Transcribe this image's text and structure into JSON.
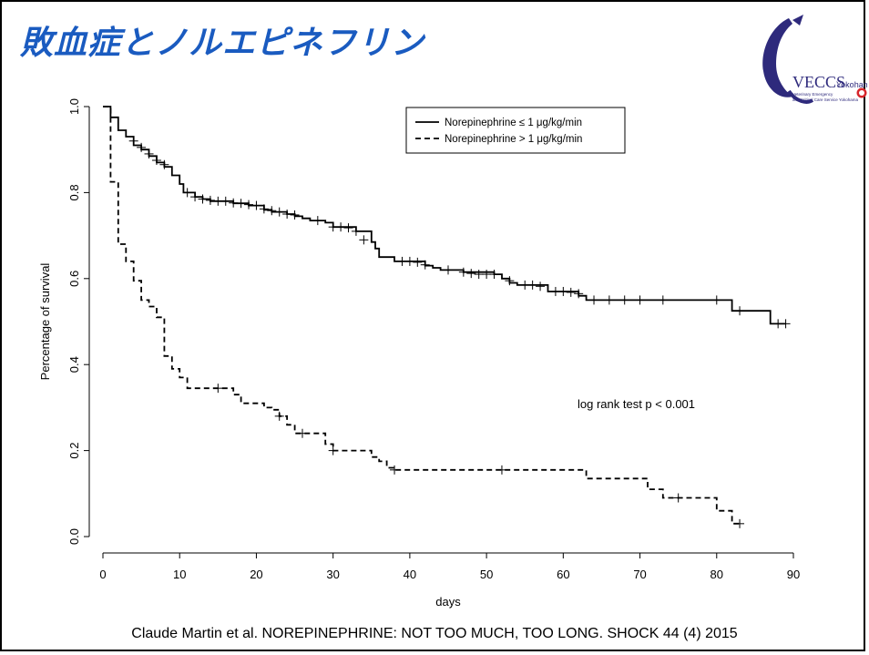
{
  "slide": {
    "title": "敗血症とノルエピネフリン",
    "citation": "Claude Martin et al. NOREPINEPHRINE: NOT TOO MUCH, TOO LONG. SHOCK 44 (4) 2015",
    "title_color": "#1a5bc0"
  },
  "logo": {
    "brand": "VECCS",
    "city": "Yokohama",
    "line1": "Veterinary Emergency",
    "line2": "and Critical Care Service Yokohama",
    "colors": {
      "arc": "#2e2a7c",
      "dot": "#d7262c"
    }
  },
  "chart_data": {
    "type": "line",
    "xlabel": "days",
    "ylabel": "Percentage of survival",
    "xlim": [
      0,
      90
    ],
    "ylim": [
      0.0,
      1.0
    ],
    "xticks": [
      "0",
      "10",
      "20",
      "30",
      "40",
      "50",
      "60",
      "70",
      "80",
      "90"
    ],
    "yticks": [
      "0.0",
      "0.2",
      "0.4",
      "0.6",
      "0.8",
      "1.0"
    ],
    "legend_position": "top-right",
    "annotation": "log rank test p < 0.001",
    "grid": false,
    "series": [
      {
        "name": "Norepinephrine ≤ 1 μg/kg/min",
        "style": "solid",
        "steps": [
          [
            0,
            1.0
          ],
          [
            1,
            0.975
          ],
          [
            2,
            0.945
          ],
          [
            3,
            0.93
          ],
          [
            4,
            0.91
          ],
          [
            5,
            0.9
          ],
          [
            6,
            0.885
          ],
          [
            7,
            0.87
          ],
          [
            8,
            0.86
          ],
          [
            9,
            0.84
          ],
          [
            10,
            0.82
          ],
          [
            10.5,
            0.8
          ],
          [
            12,
            0.79
          ],
          [
            13,
            0.785
          ],
          [
            14,
            0.78
          ],
          [
            17,
            0.775
          ],
          [
            19,
            0.77
          ],
          [
            21,
            0.76
          ],
          [
            22,
            0.755
          ],
          [
            24,
            0.75
          ],
          [
            25,
            0.745
          ],
          [
            26,
            0.74
          ],
          [
            27,
            0.735
          ],
          [
            29,
            0.73
          ],
          [
            30,
            0.72
          ],
          [
            33,
            0.71
          ],
          [
            35,
            0.685
          ],
          [
            35.5,
            0.67
          ],
          [
            36,
            0.65
          ],
          [
            38,
            0.64
          ],
          [
            42,
            0.63
          ],
          [
            43,
            0.625
          ],
          [
            44,
            0.62
          ],
          [
            47,
            0.615
          ],
          [
            51,
            0.61
          ],
          [
            52,
            0.6
          ],
          [
            53,
            0.59
          ],
          [
            54,
            0.585
          ],
          [
            58,
            0.57
          ],
          [
            62,
            0.56
          ],
          [
            63,
            0.55
          ],
          [
            82,
            0.525
          ],
          [
            87,
            0.495
          ],
          [
            89,
            0.495
          ]
        ],
        "censored": [
          [
            4,
            0.92
          ],
          [
            5,
            0.905
          ],
          [
            6,
            0.89
          ],
          [
            7,
            0.875
          ],
          [
            8,
            0.865
          ],
          [
            11,
            0.8
          ],
          [
            12,
            0.79
          ],
          [
            13,
            0.785
          ],
          [
            14,
            0.782
          ],
          [
            15,
            0.78
          ],
          [
            16,
            0.78
          ],
          [
            17,
            0.776
          ],
          [
            18,
            0.775
          ],
          [
            19,
            0.772
          ],
          [
            20,
            0.77
          ],
          [
            21,
            0.762
          ],
          [
            22,
            0.758
          ],
          [
            23,
            0.755
          ],
          [
            24,
            0.75
          ],
          [
            25,
            0.748
          ],
          [
            28,
            0.735
          ],
          [
            30,
            0.72
          ],
          [
            31,
            0.72
          ],
          [
            32,
            0.718
          ],
          [
            33,
            0.71
          ],
          [
            34,
            0.69
          ],
          [
            39,
            0.64
          ],
          [
            40,
            0.64
          ],
          [
            41,
            0.638
          ],
          [
            42,
            0.632
          ],
          [
            45,
            0.62
          ],
          [
            47,
            0.615
          ],
          [
            48,
            0.612
          ],
          [
            49,
            0.61
          ],
          [
            50,
            0.61
          ],
          [
            51,
            0.61
          ],
          [
            53,
            0.595
          ],
          [
            55,
            0.585
          ],
          [
            56,
            0.585
          ],
          [
            57,
            0.582
          ],
          [
            59,
            0.57
          ],
          [
            60,
            0.57
          ],
          [
            61,
            0.568
          ],
          [
            62,
            0.565
          ],
          [
            64,
            0.55
          ],
          [
            66,
            0.55
          ],
          [
            68,
            0.55
          ],
          [
            70,
            0.55
          ],
          [
            73,
            0.55
          ],
          [
            80,
            0.55
          ],
          [
            83,
            0.525
          ],
          [
            88,
            0.495
          ],
          [
            89,
            0.495
          ]
        ]
      },
      {
        "name": "Norepinephrine > 1 μg/kg/min",
        "style": "dashed",
        "steps": [
          [
            0,
            1.0
          ],
          [
            1,
            0.825
          ],
          [
            2,
            0.68
          ],
          [
            3,
            0.64
          ],
          [
            4,
            0.595
          ],
          [
            5,
            0.55
          ],
          [
            6,
            0.535
          ],
          [
            7,
            0.51
          ],
          [
            8,
            0.42
          ],
          [
            9,
            0.39
          ],
          [
            10,
            0.37
          ],
          [
            11,
            0.345
          ],
          [
            17,
            0.33
          ],
          [
            18,
            0.31
          ],
          [
            21,
            0.3
          ],
          [
            22,
            0.295
          ],
          [
            23,
            0.28
          ],
          [
            24,
            0.26
          ],
          [
            25,
            0.24
          ],
          [
            29,
            0.215
          ],
          [
            30,
            0.2
          ],
          [
            35,
            0.185
          ],
          [
            36,
            0.175
          ],
          [
            37,
            0.16
          ],
          [
            38,
            0.155
          ],
          [
            63,
            0.135
          ],
          [
            71,
            0.11
          ],
          [
            73,
            0.09
          ],
          [
            80,
            0.06
          ],
          [
            82,
            0.03
          ],
          [
            83,
            0.03
          ]
        ],
        "censored": [
          [
            15,
            0.345
          ],
          [
            23,
            0.28
          ],
          [
            26,
            0.24
          ],
          [
            30,
            0.2
          ],
          [
            38,
            0.155
          ],
          [
            52,
            0.155
          ],
          [
            75,
            0.09
          ],
          [
            83,
            0.03
          ]
        ]
      }
    ]
  }
}
